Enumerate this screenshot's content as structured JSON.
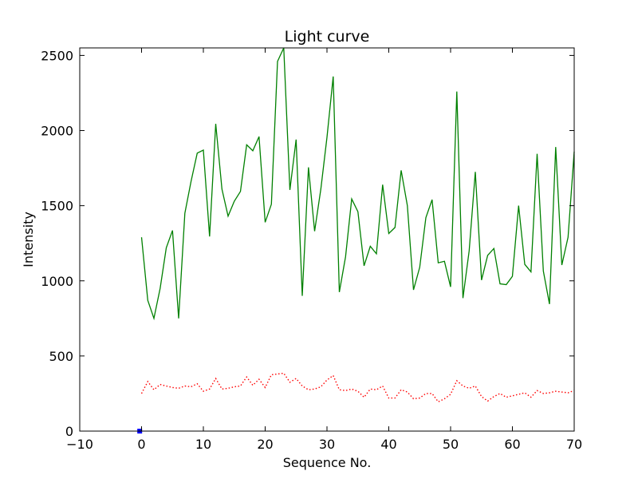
{
  "chart_data": {
    "type": "line",
    "title": "Light curve",
    "xlabel": "Sequence No.",
    "ylabel": "Intensity",
    "xlim": [
      -10,
      70
    ],
    "ylim": [
      0,
      2550
    ],
    "x_ticks": [
      "−10",
      "0",
      "10",
      "20",
      "30",
      "40",
      "50",
      "60",
      "70"
    ],
    "x_tick_values": [
      -10,
      0,
      10,
      20,
      30,
      40,
      50,
      60,
      70
    ],
    "y_ticks": [
      "0",
      "500",
      "1000",
      "1500",
      "2000",
      "2500"
    ],
    "y_tick_values": [
      0,
      500,
      1000,
      1500,
      2000,
      2500
    ],
    "grid": false,
    "series": [
      {
        "color": "#008000",
        "style": "solid",
        "x": [
          0,
          1,
          2,
          3,
          4,
          5,
          6,
          7,
          8,
          9,
          10,
          11,
          12,
          13,
          14,
          15,
          16,
          17,
          18,
          19,
          20,
          21,
          22,
          23,
          24,
          25,
          26,
          27,
          28,
          29,
          30,
          31,
          32,
          33,
          34,
          35,
          36,
          37,
          38,
          39,
          40,
          41,
          42,
          43,
          44,
          45,
          46,
          47,
          48,
          49,
          50,
          51,
          52,
          53,
          54,
          55,
          56,
          57,
          58,
          59,
          60,
          61,
          62,
          63,
          64,
          65,
          66,
          67,
          68,
          69,
          70
        ],
        "values": [
          1290,
          870,
          750,
          950,
          1220,
          1335,
          750,
          1450,
          1660,
          1850,
          1870,
          1295,
          2045,
          1610,
          1430,
          1530,
          1595,
          1905,
          1865,
          1960,
          1390,
          1510,
          2460,
          2550,
          1605,
          1940,
          900,
          1755,
          1330,
          1610,
          1955,
          2360,
          925,
          1160,
          1545,
          1460,
          1100,
          1230,
          1180,
          1640,
          1315,
          1355,
          1735,
          1500,
          940,
          1090,
          1420,
          1540,
          1120,
          1130,
          960,
          2260,
          885,
          1200,
          1725,
          1005,
          1170,
          1215,
          980,
          975,
          1030,
          1500,
          1110,
          1060,
          1845,
          1065,
          845,
          1890,
          1105,
          1290,
          1860
        ]
      },
      {
        "color": "#ff0000",
        "style": "dotted",
        "x": [
          0,
          1,
          2,
          3,
          4,
          5,
          6,
          7,
          8,
          9,
          10,
          11,
          12,
          13,
          14,
          15,
          16,
          17,
          18,
          19,
          20,
          21,
          22,
          23,
          24,
          25,
          26,
          27,
          28,
          29,
          30,
          31,
          32,
          33,
          34,
          35,
          36,
          37,
          38,
          39,
          40,
          41,
          42,
          43,
          44,
          45,
          46,
          47,
          48,
          49,
          50,
          51,
          52,
          53,
          54,
          55,
          56,
          57,
          58,
          59,
          60,
          61,
          62,
          63,
          64,
          65,
          66,
          67,
          68,
          69,
          70
        ],
        "values": [
          250,
          330,
          275,
          310,
          300,
          290,
          285,
          300,
          295,
          315,
          265,
          280,
          350,
          280,
          285,
          295,
          300,
          360,
          305,
          345,
          290,
          375,
          380,
          385,
          325,
          350,
          300,
          275,
          280,
          295,
          340,
          370,
          275,
          270,
          280,
          265,
          225,
          280,
          275,
          300,
          220,
          220,
          275,
          260,
          215,
          220,
          250,
          250,
          195,
          215,
          245,
          335,
          300,
          285,
          300,
          230,
          200,
          230,
          250,
          225,
          235,
          245,
          255,
          225,
          270,
          250,
          255,
          265,
          260,
          255,
          270
        ]
      },
      {
        "color": "#0000ff",
        "style": "marker",
        "x": [
          -0.3
        ],
        "values": [
          0
        ]
      }
    ]
  }
}
